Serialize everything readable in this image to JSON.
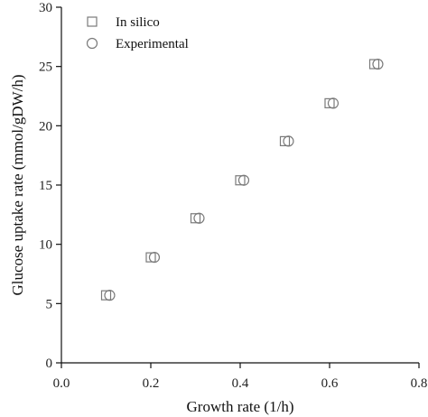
{
  "chart_data": {
    "type": "scatter",
    "title": "",
    "xlabel": "Growth rate (1/h)",
    "ylabel": "Glucose uptake rate (mmol/gDW/h)",
    "xlim": [
      0,
      0.8
    ],
    "ylim": [
      0,
      30
    ],
    "xticks": [
      0.0,
      0.2,
      0.4,
      0.6,
      0.8
    ],
    "xtick_labels": [
      "0.0",
      "0.2",
      "0.4",
      "0.6",
      "0.8"
    ],
    "yticks": [
      0,
      5,
      10,
      15,
      20,
      25,
      30
    ],
    "ytick_labels": [
      "0",
      "5",
      "10",
      "15",
      "20",
      "25",
      "30"
    ],
    "grid": false,
    "legend_position": "top-left",
    "series": [
      {
        "name": "In silico",
        "marker": "square",
        "x": [
          0.1,
          0.2,
          0.3,
          0.4,
          0.5,
          0.6,
          0.7
        ],
        "y": [
          5.7,
          8.9,
          12.2,
          15.4,
          18.7,
          21.9,
          25.2
        ]
      },
      {
        "name": "Experimental",
        "marker": "circle",
        "x": [
          0.108,
          0.208,
          0.308,
          0.408,
          0.508,
          0.608,
          0.708
        ],
        "y": [
          5.7,
          8.9,
          12.2,
          15.4,
          18.7,
          21.9,
          25.2
        ]
      }
    ],
    "colors": {
      "marker_stroke": "#7a7a7a",
      "axis": "#111111"
    }
  }
}
